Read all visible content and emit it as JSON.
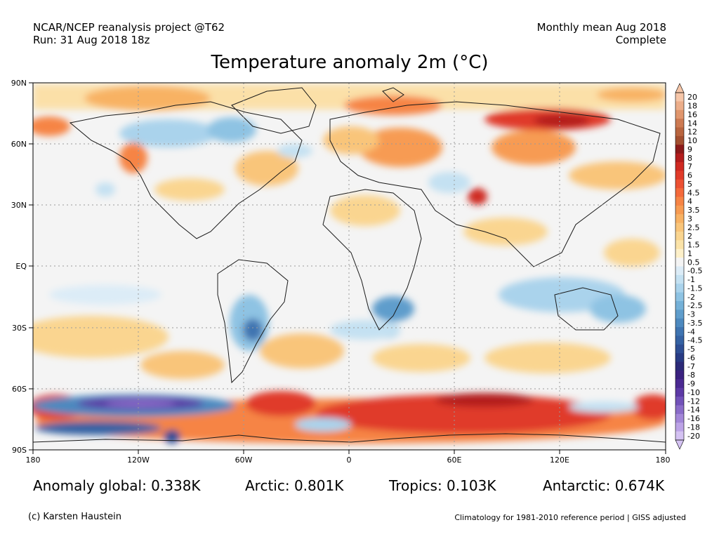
{
  "header": {
    "project": "NCAR/NCEP reanalysis project @T62",
    "run": "Run: 31 Aug 2018 18z",
    "period": "Monthly mean Aug 2018",
    "status": "Complete"
  },
  "title": "Temperature anomaly 2m (°C)",
  "map": {
    "lat_labels": [
      "90N",
      "60N",
      "30N",
      "EQ",
      "30S",
      "60S",
      "90S"
    ],
    "lon_labels": [
      "180",
      "120W",
      "60W",
      "0",
      "60E",
      "120E",
      "180"
    ],
    "projection": "equirectangular",
    "grid": "dotted every 30°"
  },
  "colorbar": {
    "labels": [
      "20",
      "18",
      "16",
      "14",
      "12",
      "10",
      "9",
      "8",
      "7",
      "6",
      "5",
      "4.5",
      "4",
      "3.5",
      "3",
      "2.5",
      "2",
      "1.5",
      "1",
      "0.5",
      "-0.5",
      "-1",
      "-1.5",
      "-2",
      "-2.5",
      "-3",
      "-3.5",
      "-4",
      "-4.5",
      "-5",
      "-6",
      "-7",
      "-8",
      "-9",
      "-10",
      "-12",
      "-14",
      "-16",
      "-18",
      "-20"
    ],
    "colors": [
      "#f6c6a8",
      "#ecae8a",
      "#e0966d",
      "#cd7a52",
      "#b9653f",
      "#a34f30",
      "#8b1a1a",
      "#b31d1d",
      "#cf2a22",
      "#e03b2a",
      "#ec5133",
      "#f46a3b",
      "#f68445",
      "#f79b52",
      "#f8b264",
      "#f9c57a",
      "#fad590",
      "#fbe3a8",
      "#fdf0c9",
      "#f4f4f4",
      "#dcecf7",
      "#c4e1f2",
      "#aad3ec",
      "#8ec3e3",
      "#75b1d8",
      "#5f9dcc",
      "#4d89bf",
      "#3f74b1",
      "#3562a3",
      "#2e4e94",
      "#283b84",
      "#2c2a78",
      "#3b2280",
      "#4b2a92",
      "#5d3aa6",
      "#7252b9",
      "#8a6cc9",
      "#a387d8",
      "#bca3e6",
      "#d4c2f2"
    ]
  },
  "stats": {
    "global": "Anomaly global: 0.338K",
    "arctic": "Arctic: 0.801K",
    "tropics": "Tropics: 0.103K",
    "antarctic": "Antarctic: 0.674K"
  },
  "footer": {
    "credit": "(c) Karsten Haustein",
    "note": "Climatology for 1981-2010 reference period | GISS adjusted"
  }
}
